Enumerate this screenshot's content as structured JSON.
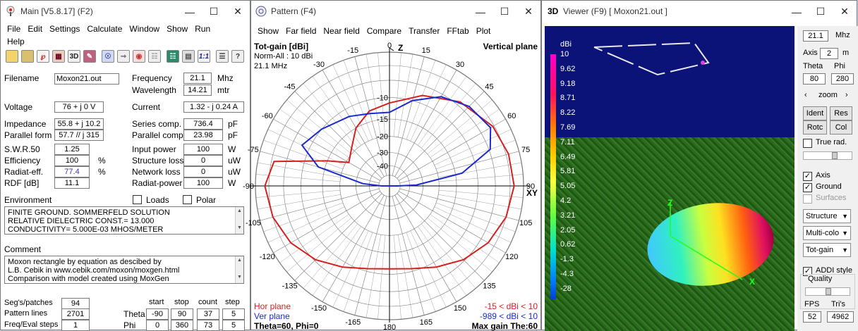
{
  "main": {
    "title": "Main [V5.8.17]   (F2)",
    "menu": [
      "File",
      "Edit",
      "Settings",
      "Calculate",
      "Window",
      "Show",
      "Run",
      "Help"
    ],
    "filename_label": "Filename",
    "filename": "Moxon21.out",
    "frequency_label": "Frequency",
    "frequency": "21.1",
    "frequency_unit": "Mhz",
    "wavelength_label": "Wavelength",
    "wavelength": "14.21",
    "wavelength_unit": "mtr",
    "voltage_label": "Voltage",
    "voltage": "76 + j 0 V",
    "current_label": "Current",
    "current": "1.32 - j 0.24 A",
    "impedance_label": "Impedance",
    "impedance": "55.8 + j 10.2",
    "series_comp_label": "Series comp.",
    "series_comp": "736.4",
    "series_comp_unit": "pF",
    "parallel_form_label": "Parallel form",
    "parallel_form": "57.7 // j 315",
    "parallel_comp_label": "Parallel comp.",
    "parallel_comp": "23.98",
    "parallel_comp_unit": "pF",
    "swr_label": "S.W.R.50",
    "swr": "1.25",
    "input_power_label": "Input power",
    "input_power": "100",
    "input_power_unit": "W",
    "efficiency_label": "Efficiency",
    "efficiency": "100",
    "efficiency_unit": "%",
    "structure_loss_label": "Structure loss",
    "structure_loss": "0",
    "structure_loss_unit": "uW",
    "radiat_eff_label": "Radiat-eff.",
    "radiat_eff": "77.4",
    "radiat_eff_unit": "%",
    "network_loss_label": "Network loss",
    "network_loss": "0",
    "network_loss_unit": "uW",
    "rdf_label": "RDF [dB]",
    "rdf": "11.1",
    "radiat_power_label": "Radiat-power",
    "radiat_power": "100",
    "radiat_power_unit": "W",
    "environment_label": "Environment",
    "loads_label": "Loads",
    "polar_label": "Polar",
    "environment_lines": [
      "FINITE GROUND.  SOMMERFELD SOLUTION",
      "RELATIVE DIELECTRIC CONST.= 13.000",
      "CONDUCTIVITY= 5.000E-03 MHOS/METER"
    ],
    "comment_label": "Comment",
    "comment_lines": [
      "Moxon rectangle by equation as descibed by",
      "L.B. Cebik in www.cebik.com/moxon/moxgen.html",
      "Comparison with model created using MoxGen"
    ],
    "segs_label": "Seg's/patches",
    "segs": "94",
    "pattern_lines_label": "Pattern lines",
    "pattern_lines": "2701",
    "freq_eval_label": "Freq/Eval steps",
    "freq_eval": "1",
    "start_label": "start",
    "stop_label": "stop",
    "count_label": "count",
    "step_label": "step",
    "theta_label": "Theta",
    "theta_start": "-90",
    "theta_stop": "90",
    "theta_count": "37",
    "theta_step": "5",
    "phi_label": "Phi",
    "phi_start": "0",
    "phi_stop": "360",
    "phi_count": "73",
    "phi_step": "5",
    "toolbar_text": [
      "3D",
      "1:1"
    ],
    "colors": {
      "radiat_eff_value": "#3a3aa0"
    }
  },
  "pattern": {
    "title": "Pattern   (F4)",
    "menu": [
      "Show",
      "Far field",
      "Near field",
      "Compare",
      "Transfer",
      "FFtab",
      "Plot"
    ],
    "gain_title": "Tot-gain [dBi]",
    "norm": "Norm-All : 10 dBi",
    "freq": "21.1 MHz",
    "plane": "Vertical plane",
    "angle_labels": [
      "0",
      "15",
      "30",
      "45",
      "60",
      "75",
      "90",
      "105",
      "120",
      "135",
      "150",
      "165",
      "180",
      "-165",
      "-150",
      "-135",
      "-120",
      "-105",
      "-90",
      "-75",
      "-60",
      "-45",
      "-30",
      "-15"
    ],
    "z_label": "Z",
    "xy_label": "XY",
    "ring_labels": [
      "-10",
      "-15",
      "-20",
      "-30",
      "-40"
    ],
    "hor_plane": "Hor plane",
    "ver_plane": "Ver plane",
    "hor_range": "-15 < dBi < 10",
    "ver_range": "-989 < dBi < 10",
    "bottom_left": "Theta=60, Phi=0",
    "bottom_right": "Max gain The:60",
    "colors": {
      "hor": "#d62020",
      "ver": "#1a2ad0"
    }
  },
  "viewer": {
    "title": "Viewer (F9)     [  Moxon21.out ]",
    "title_icon": "3D",
    "scale_unit": "dBi",
    "scale_values": [
      "10",
      "9.62",
      "9.18",
      "8.71",
      "8.22",
      "7.69",
      "7.11",
      "6.49",
      "5.81",
      "5.05",
      "4.2",
      "3.21",
      "2.05",
      "0.62",
      "-1.3",
      "-4.3",
      "-28"
    ],
    "freq": "21.1",
    "freq_unit": "Mhz",
    "axis_label": "Axis",
    "axis_value": "2",
    "axis_unit": "m",
    "theta_label": "Theta",
    "phi_label": "Phi",
    "theta": "80",
    "phi": "280",
    "zoom_label": "zoom",
    "ident": "Ident",
    "res": "Res",
    "rotc": "Rotc",
    "col": "Col",
    "true_rad": "True rad.",
    "cb_axis": "Axis",
    "cb_ground": "Ground",
    "cb_surfaces": "Surfaces",
    "sel_structure": "Structure",
    "sel_multicolor": "Multi-colo",
    "sel_totgain": "Tot-gain",
    "addi_style": "ADDI style",
    "quality": "Quality",
    "fps_label": "FPS",
    "tris_label": "Tri's",
    "fps": "52",
    "tris": "4962",
    "axis_z": "Z",
    "axis_x": "X",
    "colors": {
      "sky": "#0b1378",
      "ground": "#2c6a1e"
    }
  }
}
